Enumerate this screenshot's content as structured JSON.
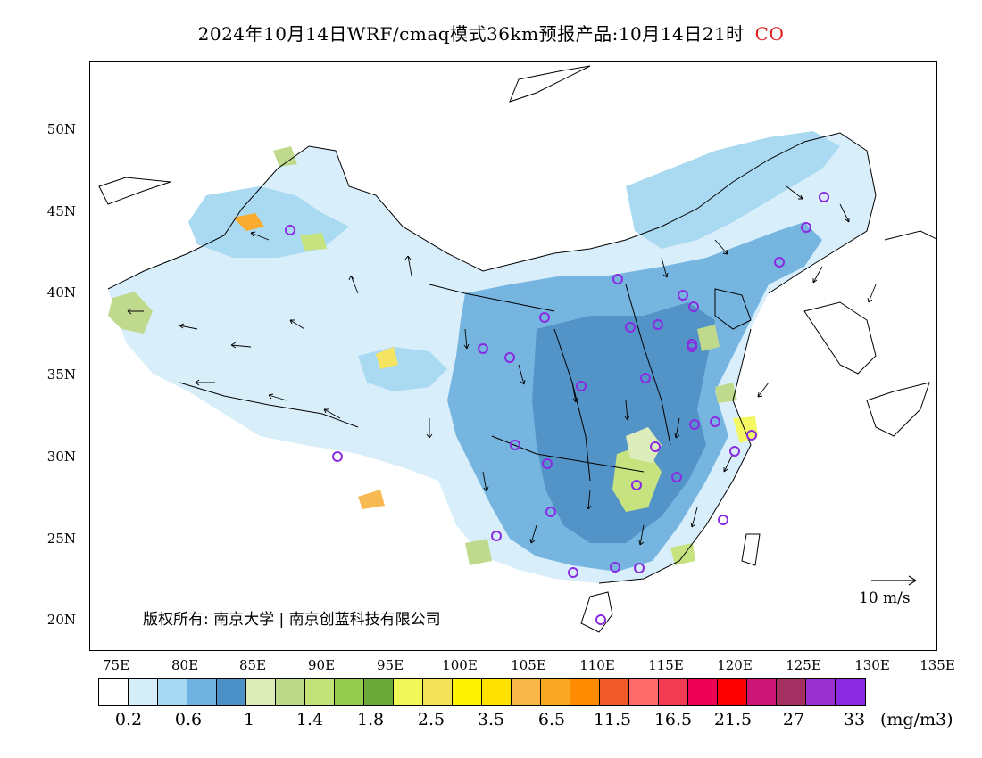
{
  "title": {
    "text": "2024年10月14日WRF/cmaq模式36km预报产品:10月14日21时",
    "species": "CO",
    "species_color": "#e02020"
  },
  "map": {
    "lat_labels": [
      "50N",
      "45N",
      "40N",
      "35N",
      "30N",
      "25N",
      "20N"
    ],
    "lon_labels": [
      "75E",
      "80E",
      "85E",
      "90E",
      "95E",
      "100E",
      "105E",
      "110E",
      "115E",
      "120E",
      "125E",
      "130E",
      "135E"
    ],
    "wind_reference": "10 m/s",
    "copyright": "版权所有: 南京大学 | 南京创蓝科技有限公司",
    "station_marker_color": "#8a2be2"
  },
  "colorbar": {
    "colors": [
      "#ffffff",
      "#d6eefa",
      "#a6d8f2",
      "#6fb2df",
      "#4a8fc6",
      "#dcebb8",
      "#bcd987",
      "#c4e27a",
      "#93cc4e",
      "#6aa93a",
      "#f2f75a",
      "#f4e35a",
      "#fff200",
      "#ffe100",
      "#f7b648",
      "#f9a824",
      "#ff8c00",
      "#f05a28",
      "#ff6b6b",
      "#f23a52",
      "#ee0055",
      "#ff0000",
      "#cc1577",
      "#a33060",
      "#9b30d0",
      "#8a2be2"
    ],
    "labels": [
      "0.2",
      "0.6",
      "1",
      "1.4",
      "1.8",
      "2.5",
      "3.5",
      "6.5",
      "11.5",
      "16.5",
      "21.5",
      "27",
      "33"
    ],
    "unit": "(mg/m3)"
  }
}
